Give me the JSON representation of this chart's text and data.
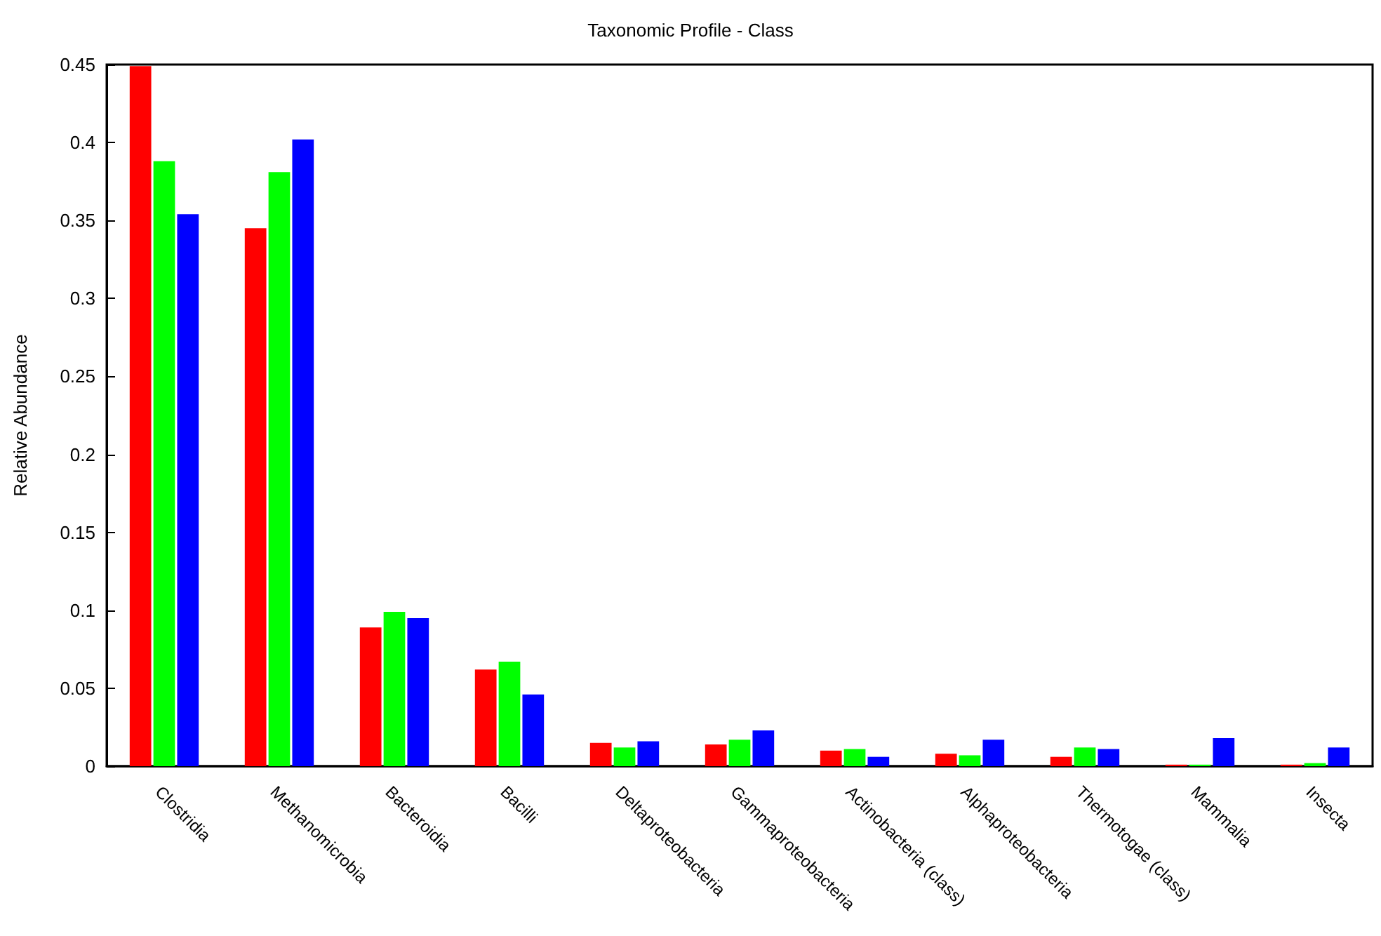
{
  "chart_data": {
    "type": "bar",
    "title": "Taxonomic Profile - Class",
    "ylabel": "Relative Abundance",
    "categories": [
      "Clostridia",
      "Methanomicrobia",
      "Bacteroidia",
      "Bacilli",
      "Deltaproteobacteria",
      "Gammaproteobacteria",
      "Actinobacteria (class)",
      "Alphaproteobacteria",
      "Thermotogae (class)",
      "Mammalia",
      "Insecta"
    ],
    "series": [
      {
        "color": "#ff0000",
        "values": [
          0.449,
          0.345,
          0.089,
          0.062,
          0.015,
          0.014,
          0.01,
          0.008,
          0.006,
          0.001,
          0.001
        ]
      },
      {
        "color": "#00ff00",
        "values": [
          0.388,
          0.381,
          0.099,
          0.067,
          0.012,
          0.017,
          0.011,
          0.007,
          0.012,
          0.001,
          0.002
        ]
      },
      {
        "color": "#0000ff",
        "values": [
          0.354,
          0.402,
          0.095,
          0.046,
          0.016,
          0.023,
          0.006,
          0.017,
          0.011,
          0.018,
          0.012
        ]
      }
    ],
    "ylim": [
      0,
      0.45
    ],
    "yticks": [
      0,
      0.05,
      0.1,
      0.15,
      0.2,
      0.25,
      0.3,
      0.35,
      0.4,
      0.45
    ],
    "grid": false
  }
}
